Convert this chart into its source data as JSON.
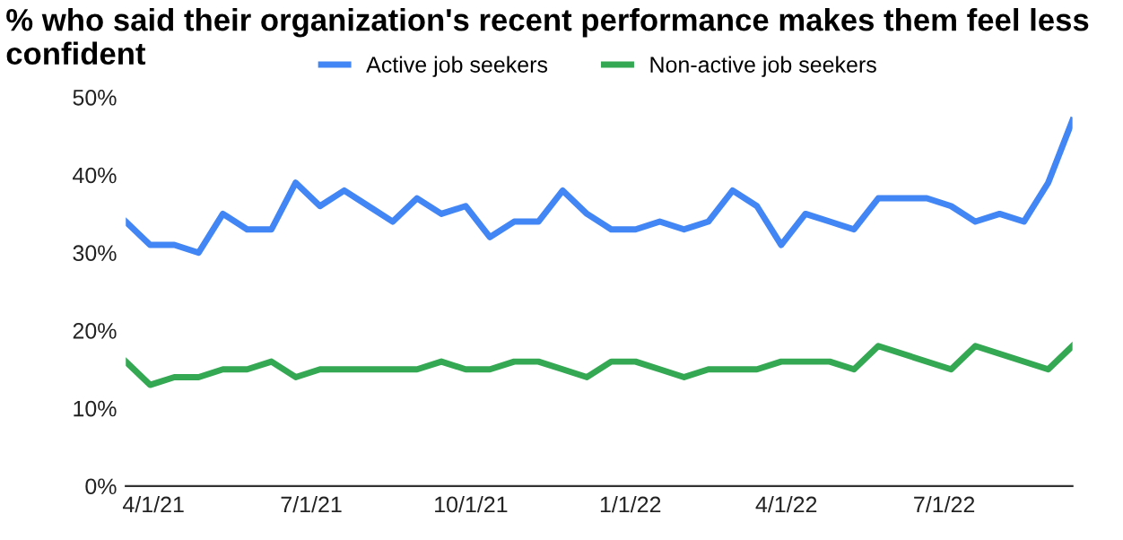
{
  "chart_data": {
    "type": "line",
    "title": "% who said their organization's recent performance makes them feel less confident",
    "x": [
      "2021-03-16",
      "2021-03-30",
      "2021-04-13",
      "2021-04-27",
      "2021-05-11",
      "2021-05-25",
      "2021-06-08",
      "2021-06-22",
      "2021-07-06",
      "2021-07-20",
      "2021-08-03",
      "2021-08-17",
      "2021-08-31",
      "2021-09-14",
      "2021-09-28",
      "2021-10-12",
      "2021-10-26",
      "2021-11-09",
      "2021-11-23",
      "2021-12-07",
      "2021-12-21",
      "2022-01-04",
      "2022-01-18",
      "2022-02-01",
      "2022-02-15",
      "2022-03-01",
      "2022-03-15",
      "2022-03-29",
      "2022-04-12",
      "2022-04-26",
      "2022-05-10",
      "2022-05-24",
      "2022-06-07",
      "2022-06-21",
      "2022-07-05",
      "2022-07-19",
      "2022-08-02",
      "2022-08-16",
      "2022-08-30",
      "2022-09-13"
    ],
    "series": [
      {
        "name": "Active job seekers",
        "color": "#4285f4",
        "values": [
          34,
          31,
          31,
          30,
          35,
          33,
          33,
          39,
          36,
          38,
          36,
          34,
          37,
          35,
          36,
          32,
          34,
          34,
          38,
          35,
          33,
          33,
          34,
          33,
          34,
          38,
          36,
          31,
          35,
          34,
          33,
          37,
          37,
          37,
          36,
          34,
          35,
          34,
          39,
          47
        ]
      },
      {
        "name": "Non-active job seekers",
        "color": "#34a853",
        "x": [
          "2021-03-16",
          "2021-03-30",
          "2021-04-13",
          "2021-04-27",
          "2021-05-11",
          "2021-05-25",
          "2021-06-08",
          "2021-06-22",
          "2021-07-06",
          "2021-07-20",
          "2021-08-03",
          "2021-08-17",
          "2021-08-31",
          "2021-09-14",
          "2021-09-28",
          "2021-10-12",
          "2021-10-26",
          "2021-11-09",
          "2021-11-23",
          "2021-12-07",
          "2021-12-21",
          "2022-01-04",
          "2022-01-18",
          "2022-02-01",
          "2022-02-15",
          "2022-03-01",
          "2022-03-15",
          "2022-03-29",
          "2022-04-12",
          "2022-04-26",
          "2022-05-10",
          "2022-05-24",
          "2022-07-05",
          "2022-07-19",
          "2022-08-30",
          "2022-09-13"
        ],
        "values": [
          16,
          13,
          14,
          14,
          15,
          15,
          16,
          14,
          15,
          15,
          15,
          15,
          15,
          16,
          15,
          15,
          16,
          16,
          15,
          14,
          16,
          16,
          15,
          14,
          15,
          15,
          15,
          16,
          16,
          16,
          15,
          18,
          15,
          18,
          15,
          18
        ]
      }
    ],
    "xlim": [
      "2021-03-16",
      "2022-09-13"
    ],
    "xticks": [
      {
        "value": "2021-04-01",
        "label": "4/1/21"
      },
      {
        "value": "2021-07-01",
        "label": "7/1/21"
      },
      {
        "value": "2021-10-01",
        "label": "10/1/21"
      },
      {
        "value": "2022-01-01",
        "label": "1/1/22"
      },
      {
        "value": "2022-04-01",
        "label": "4/1/22"
      },
      {
        "value": "2022-07-01",
        "label": "7/1/22"
      }
    ],
    "ylim": [
      0,
      50
    ],
    "yticks": [
      {
        "value": 0,
        "label": "0%"
      },
      {
        "value": 10,
        "label": "10%"
      },
      {
        "value": 20,
        "label": "20%"
      },
      {
        "value": 30,
        "label": "30%"
      },
      {
        "value": 40,
        "label": "40%"
      },
      {
        "value": 50,
        "label": "50%"
      }
    ],
    "grid": false,
    "legend": "top",
    "marker": "none",
    "line_style": "solid"
  }
}
